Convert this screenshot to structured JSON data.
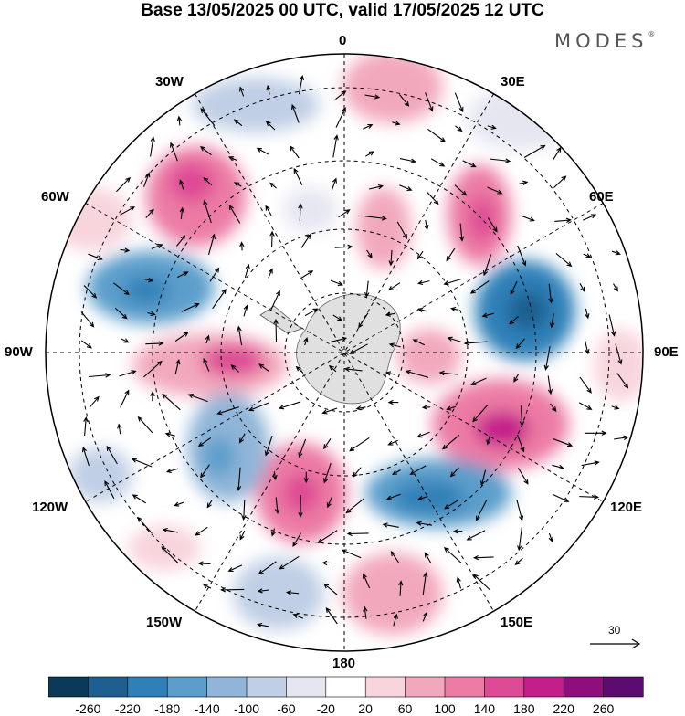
{
  "header": {
    "title": "Base 13/05/2025 00 UTC, valid 17/05/2025 12 UTC"
  },
  "brand": {
    "name": "MODES",
    "mark": "®"
  },
  "map": {
    "projection": "south-polar-stereographic",
    "longitude_labels": {
      "lon_0": "0",
      "lon_30e": "30E",
      "lon_60e": "60E",
      "lon_90e": "90E",
      "lon_120e": "120E",
      "lon_150e": "150E",
      "lon_180": "180",
      "lon_150w": "150W",
      "lon_120w": "120W",
      "lon_90w": "90W",
      "lon_60w": "60W",
      "lon_30w": "30W"
    },
    "reference_vector": {
      "value": "30"
    }
  },
  "colorbar": {
    "colors": [
      "#0b3a58",
      "#1d5f8f",
      "#2f80b8",
      "#5b9ecb",
      "#90b5d8",
      "#c0cfe5",
      "#e6e6f1",
      "#ffffff",
      "#f8d4dc",
      "#f2a8bc",
      "#ec7ca4",
      "#de4a94",
      "#c41e8a",
      "#8f0d7d",
      "#5c0b70"
    ],
    "labels": [
      "-260",
      "-220",
      "-180",
      "-140",
      "-100",
      "-60",
      "-20",
      "20",
      "60",
      "100",
      "140",
      "180",
      "220",
      "260"
    ]
  }
}
